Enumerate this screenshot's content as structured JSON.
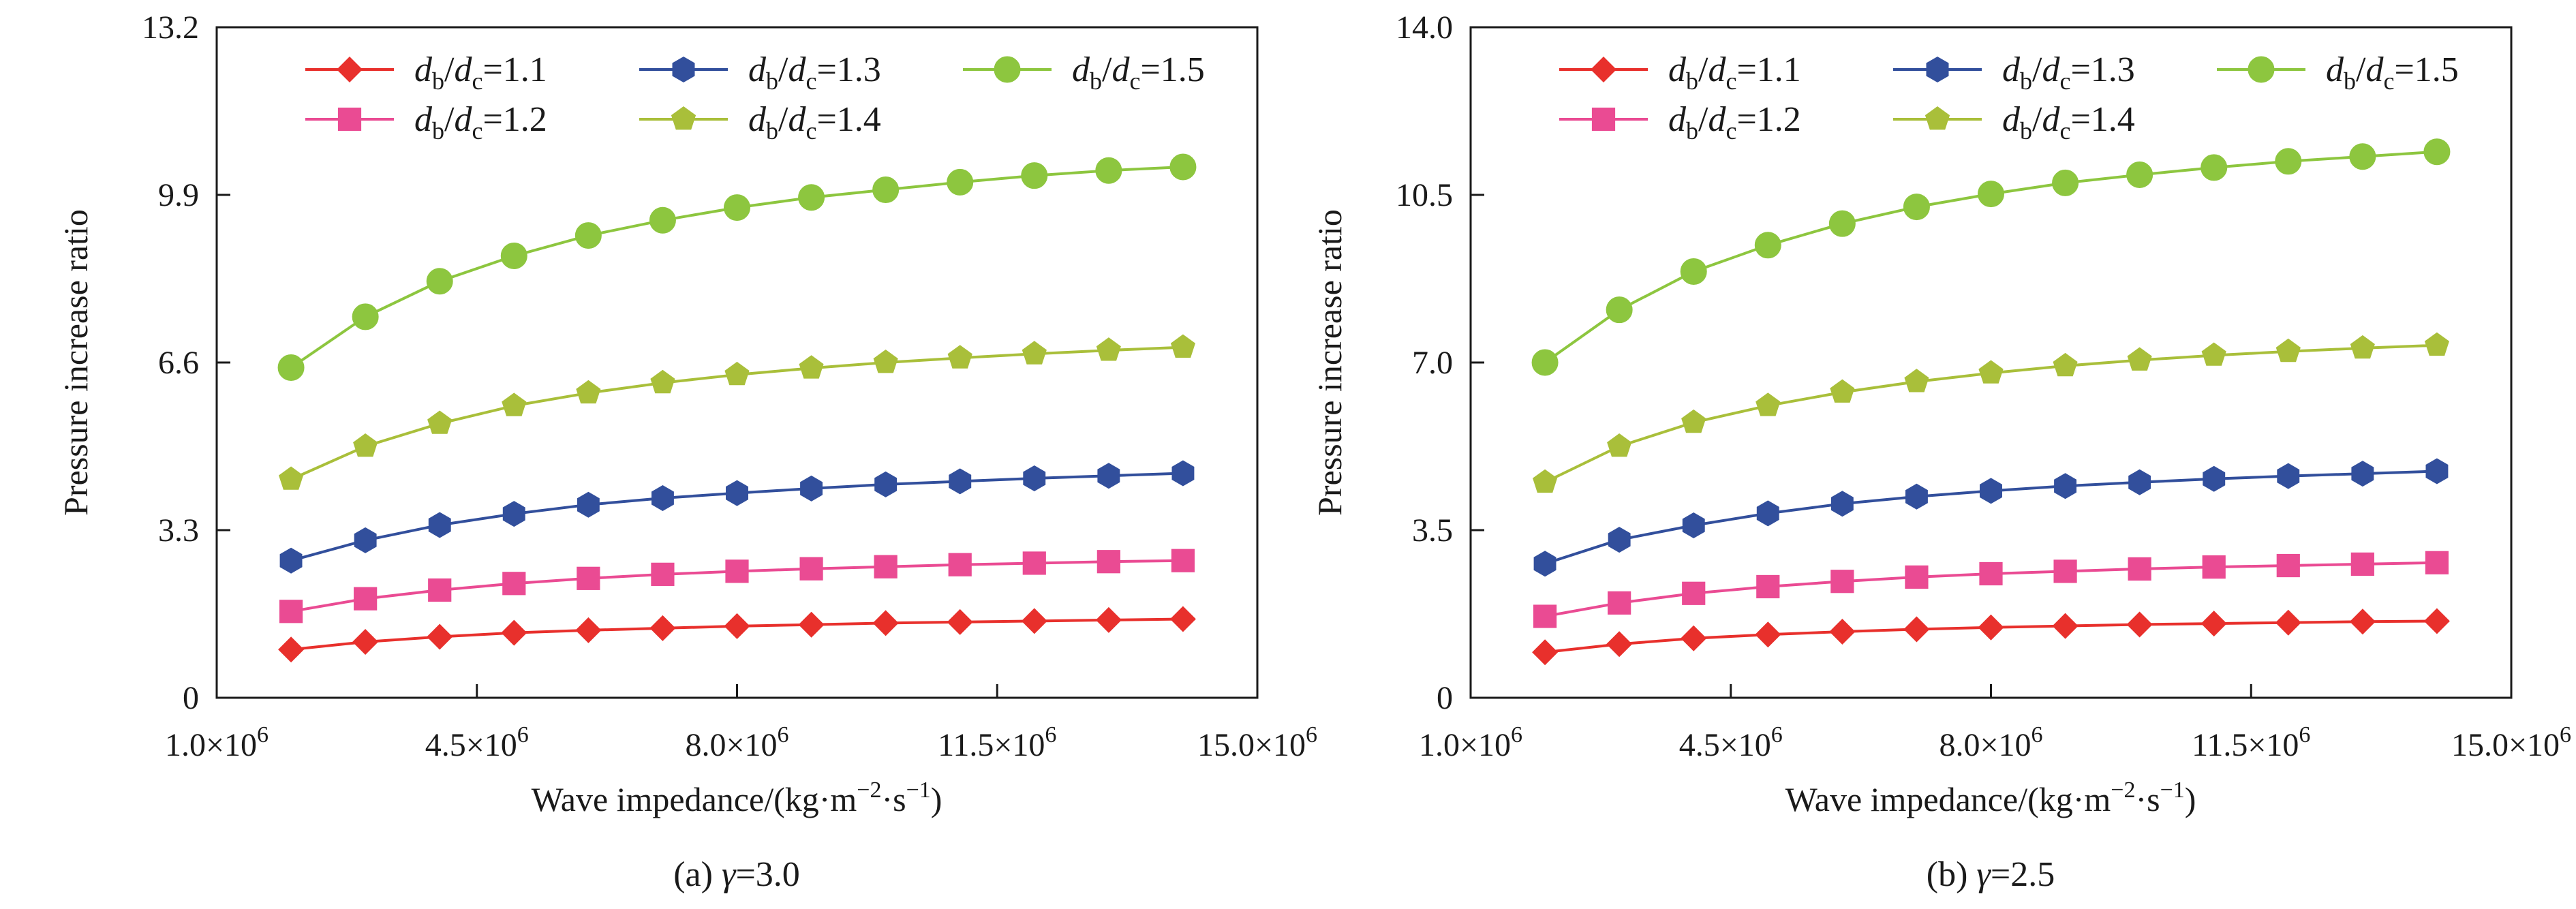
{
  "colors": {
    "db_dc_1_1": "#e8302c",
    "db_dc_1_2": "#ea4b93",
    "db_dc_1_3": "#324f9c",
    "db_dc_1_4": "#a9bf3a",
    "db_dc_1_5": "#8dc63f",
    "axis": "#1a1a1a"
  },
  "chart_data": [
    {
      "type": "line",
      "caption": {
        "prefix": "(a) ",
        "symbol": "γ",
        "suffix": "=3.0"
      },
      "xlabel": {
        "main": "Wave impedance/(kg·m",
        "e1": "−2",
        "mid": "·s",
        "e2": "−1",
        "end": ")"
      },
      "ylabel": "Pressure increase ratio",
      "xlim": [
        1000000,
        15000000
      ],
      "ylim": [
        0,
        13.2
      ],
      "x_ticks": [
        1000000,
        4500000,
        8000000,
        11500000,
        15000000
      ],
      "x_tick_labels": [
        "1.0×10",
        "4.5×10",
        "8.0×10",
        "11.5×10",
        "15.0×10"
      ],
      "x_tick_exponent": "6",
      "y_ticks": [
        0,
        3.3,
        6.6,
        9.9,
        13.2
      ],
      "y_tick_labels": [
        "0",
        "3.3",
        "6.6",
        "9.9",
        "13.2"
      ],
      "legend_position": "top",
      "x": [
        2000000,
        3000000,
        4000000,
        5000000,
        6000000,
        7000000,
        8000000,
        9000000,
        10000000,
        11000000,
        12000000,
        13000000,
        14000000
      ],
      "series": [
        {
          "num": "1",
          "marker": "diamond",
          "colorKey": "db_dc_1_1",
          "label": {
            "d": "d",
            "s1": "b",
            "slash": "/",
            "s2": "c",
            "val": "=1.1"
          },
          "values": [
            0.95,
            1.1,
            1.2,
            1.28,
            1.33,
            1.37,
            1.41,
            1.44,
            1.47,
            1.49,
            1.51,
            1.53,
            1.55
          ]
        },
        {
          "num": "2",
          "marker": "square",
          "colorKey": "db_dc_1_2",
          "label": {
            "d": "d",
            "s1": "b",
            "slash": "/",
            "s2": "c",
            "val": "=1.2"
          },
          "values": [
            1.7,
            1.95,
            2.12,
            2.25,
            2.35,
            2.43,
            2.49,
            2.54,
            2.58,
            2.62,
            2.65,
            2.68,
            2.7
          ]
        },
        {
          "num": "3",
          "marker": "hexagon",
          "colorKey": "db_dc_1_3",
          "label": {
            "d": "d",
            "s1": "b",
            "slash": "/",
            "s2": "c",
            "val": "=1.3"
          },
          "values": [
            2.7,
            3.1,
            3.4,
            3.62,
            3.8,
            3.93,
            4.03,
            4.12,
            4.2,
            4.26,
            4.32,
            4.37,
            4.42
          ]
        },
        {
          "num": "4",
          "marker": "pentagon",
          "colorKey": "db_dc_1_4",
          "label": {
            "d": "d",
            "s1": "b",
            "slash": "/",
            "s2": "c",
            "val": "=1.4"
          },
          "values": [
            4.3,
            4.95,
            5.4,
            5.75,
            6.0,
            6.2,
            6.36,
            6.49,
            6.6,
            6.69,
            6.77,
            6.84,
            6.9
          ]
        },
        {
          "num": "5",
          "marker": "circle",
          "colorKey": "db_dc_1_5",
          "label": {
            "d": "d",
            "s1": "b",
            "slash": "/",
            "s2": "c",
            "val": "=1.5"
          },
          "values": [
            6.5,
            7.5,
            8.2,
            8.7,
            9.1,
            9.4,
            9.65,
            9.85,
            10.0,
            10.15,
            10.28,
            10.38,
            10.45
          ]
        }
      ]
    },
    {
      "type": "line",
      "caption": {
        "prefix": "(b) ",
        "symbol": "γ",
        "suffix": "=2.5"
      },
      "xlabel": {
        "main": "Wave impedance/(kg·m",
        "e1": "−2",
        "mid": "·s",
        "e2": "−1",
        "end": ")"
      },
      "ylabel": "Pressure increase ratio",
      "xlim": [
        1000000,
        15000000
      ],
      "ylim": [
        0,
        14.0
      ],
      "x_ticks": [
        1000000,
        4500000,
        8000000,
        11500000,
        15000000
      ],
      "x_tick_labels": [
        "1.0×10",
        "4.5×10",
        "8.0×10",
        "11.5×10",
        "15.0×10"
      ],
      "x_tick_exponent": "6",
      "y_ticks": [
        0,
        3.5,
        7.0,
        10.5,
        14.0
      ],
      "y_tick_labels": [
        "0",
        "3.5",
        "7.0",
        "10.5",
        "14.0"
      ],
      "legend_position": "top",
      "x": [
        2000000,
        3000000,
        4000000,
        5000000,
        6000000,
        7000000,
        8000000,
        9000000,
        10000000,
        11000000,
        12000000,
        13000000,
        14000000
      ],
      "series": [
        {
          "num": "1",
          "marker": "diamond",
          "colorKey": "db_dc_1_1",
          "label": {
            "d": "d",
            "s1": "b",
            "slash": "/",
            "s2": "c",
            "val": "=1.1"
          },
          "values": [
            0.95,
            1.12,
            1.24,
            1.32,
            1.38,
            1.43,
            1.47,
            1.5,
            1.53,
            1.55,
            1.57,
            1.59,
            1.6
          ]
        },
        {
          "num": "2",
          "marker": "square",
          "colorKey": "db_dc_1_2",
          "label": {
            "d": "d",
            "s1": "b",
            "slash": "/",
            "s2": "c",
            "val": "=1.2"
          },
          "values": [
            1.7,
            1.98,
            2.18,
            2.32,
            2.43,
            2.52,
            2.59,
            2.64,
            2.69,
            2.73,
            2.76,
            2.79,
            2.82
          ]
        },
        {
          "num": "3",
          "marker": "hexagon",
          "colorKey": "db_dc_1_3",
          "label": {
            "d": "d",
            "s1": "b",
            "slash": "/",
            "s2": "c",
            "val": "=1.3"
          },
          "values": [
            2.8,
            3.3,
            3.6,
            3.85,
            4.05,
            4.2,
            4.32,
            4.42,
            4.5,
            4.57,
            4.63,
            4.68,
            4.73
          ]
        },
        {
          "num": "4",
          "marker": "pentagon",
          "colorKey": "db_dc_1_4",
          "label": {
            "d": "d",
            "s1": "b",
            "slash": "/",
            "s2": "c",
            "val": "=1.4"
          },
          "values": [
            4.5,
            5.25,
            5.75,
            6.1,
            6.38,
            6.6,
            6.78,
            6.93,
            7.05,
            7.15,
            7.23,
            7.3,
            7.36
          ]
        },
        {
          "num": "5",
          "marker": "circle",
          "colorKey": "db_dc_1_5",
          "label": {
            "d": "d",
            "s1": "b",
            "slash": "/",
            "s2": "c",
            "val": "=1.5"
          },
          "values": [
            7.0,
            8.1,
            8.9,
            9.45,
            9.9,
            10.25,
            10.52,
            10.75,
            10.92,
            11.07,
            11.2,
            11.3,
            11.4
          ]
        }
      ]
    }
  ]
}
